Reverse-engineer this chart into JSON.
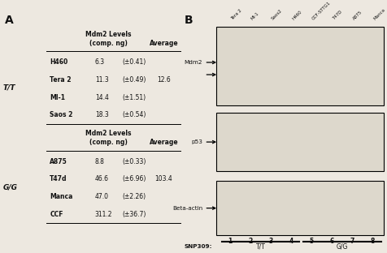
{
  "panel_A": {
    "label": "A",
    "table_TT": {
      "genotype": "T/T",
      "rows": [
        [
          "H460",
          "6.3",
          "(±0.41)",
          ""
        ],
        [
          "Tera 2",
          "11.3",
          "(±0.49)",
          "12.6"
        ],
        [
          "MI-1",
          "14.4",
          "(±1.51)",
          ""
        ],
        [
          "Saos 2",
          "18.3",
          "(±0.54)",
          ""
        ]
      ]
    },
    "table_GG": {
      "genotype": "G/G",
      "rows": [
        [
          "A875",
          "8.8",
          "(±0.33)",
          ""
        ],
        [
          "T47d",
          "46.6",
          "(±6.96)",
          "103.4"
        ],
        [
          "Manca",
          "47.0",
          "(±2.26)",
          ""
        ],
        [
          "CCF",
          "311.2",
          "(±36.7)",
          ""
        ]
      ]
    }
  },
  "panel_B": {
    "label": "B",
    "lane_labels": [
      "Tera 2",
      "MI-1",
      "Saos2",
      "H460",
      "CCF-STTG1",
      "T47D",
      "A875",
      "Manca"
    ],
    "lane_numbers": [
      "1",
      "2",
      "3",
      "4",
      "5",
      "6",
      "7",
      "8"
    ],
    "snp_label": "SNP309:",
    "tt_label": "T/T",
    "gg_label": "G/G"
  },
  "bg_color": "#ede8e0",
  "text_color": "#111111",
  "figure_bg": "#ede8e0"
}
